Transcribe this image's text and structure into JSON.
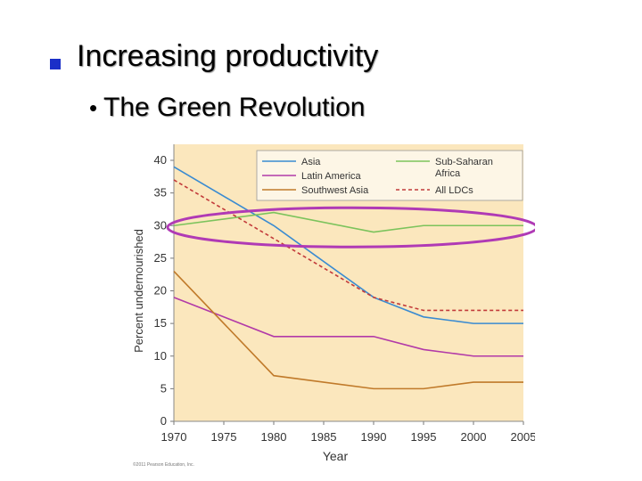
{
  "slide": {
    "title": "Increasing productivity",
    "bullet_symbol": "•",
    "subtitle": "The Green Revolution",
    "copyright": "©2011 Pearson Education, Inc."
  },
  "chart_data": {
    "type": "line",
    "title": "",
    "xlabel": "Year",
    "ylabel": "Percent undernourished",
    "xlim": [
      1970,
      2005
    ],
    "ylim": [
      0,
      40
    ],
    "x_ticks": [
      1970,
      1975,
      1980,
      1985,
      1990,
      1995,
      2000,
      2005
    ],
    "y_ticks": [
      0,
      5,
      10,
      15,
      20,
      25,
      30,
      35,
      40
    ],
    "legend_position": "top-right",
    "background_color": "#fbe7bd",
    "highlight_ellipse": {
      "around": "values near 30% across all years",
      "color": "#b03ab5"
    },
    "series": [
      {
        "name": "Asia",
        "color": "#3a8bd1",
        "dash": "solid",
        "x": [
          1970,
          1980,
          1990,
          1995,
          2000,
          2005
        ],
        "values": [
          39,
          30,
          19,
          16,
          15,
          15
        ]
      },
      {
        "name": "Sub-Saharan Africa",
        "color": "#7cc35c",
        "dash": "solid",
        "x": [
          1970,
          1980,
          1990,
          1995,
          2000,
          2005
        ],
        "values": [
          30,
          32,
          29,
          30,
          30,
          30
        ]
      },
      {
        "name": "Latin America",
        "color": "#b23aa8",
        "dash": "solid",
        "x": [
          1970,
          1980,
          1990,
          1995,
          2000,
          2005
        ],
        "values": [
          19,
          13,
          13,
          11,
          10,
          10
        ]
      },
      {
        "name": "All LDCs",
        "color": "#c23a3a",
        "dash": "dashed",
        "x": [
          1970,
          1980,
          1990,
          1995,
          2000,
          2005
        ],
        "values": [
          37,
          28,
          19,
          17,
          17,
          17
        ]
      },
      {
        "name": "Southwest Asia",
        "color": "#c07a2a",
        "dash": "solid",
        "x": [
          1970,
          1980,
          1990,
          1995,
          2000,
          2005
        ],
        "values": [
          23,
          7,
          5,
          5,
          6,
          6
        ]
      }
    ]
  }
}
